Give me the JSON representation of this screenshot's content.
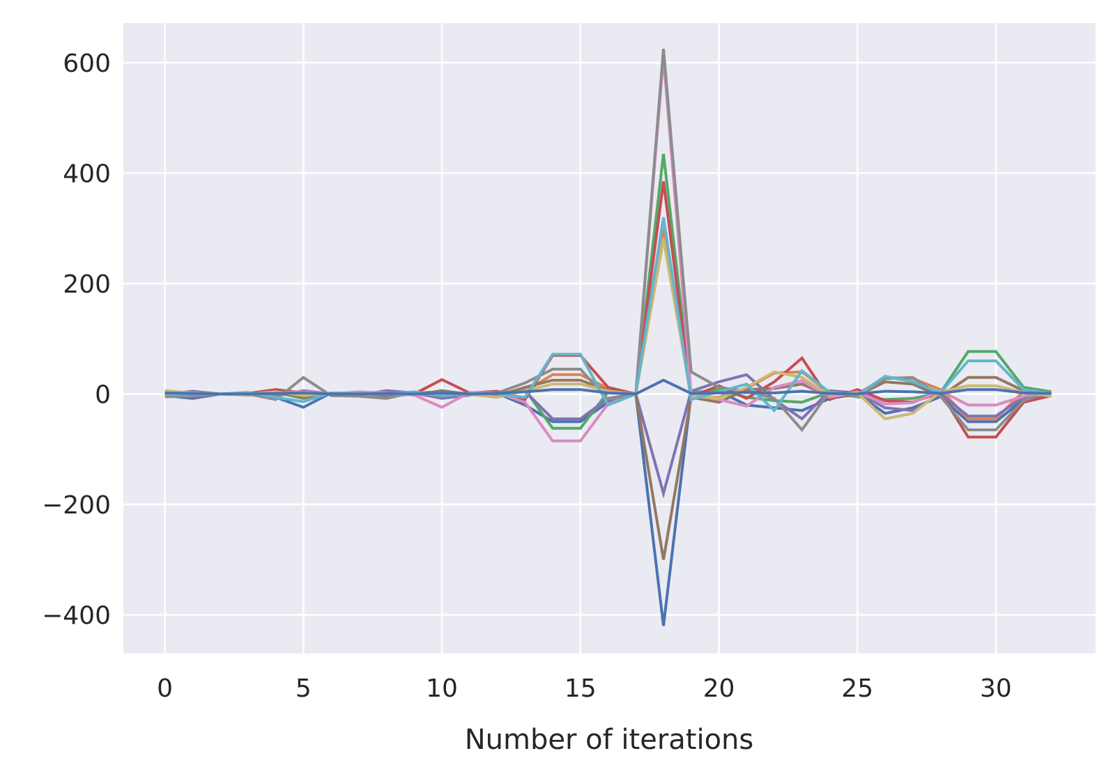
{
  "chart_data": {
    "type": "line",
    "title": "",
    "xlabel": "Number of iterations",
    "ylabel": "",
    "xlim": [
      -1.5,
      33.6
    ],
    "ylim": [
      -470,
      672
    ],
    "x_ticks": [
      0,
      5,
      10,
      15,
      20,
      25,
      30
    ],
    "y_ticks": [
      -400,
      -200,
      0,
      200,
      400,
      600
    ],
    "grid": true,
    "background": "#EAEAF2",
    "grid_color": "#FFFFFF",
    "palette": [
      "#4C72B0",
      "#DD8452",
      "#55A868",
      "#C44E52",
      "#8172B3",
      "#937860",
      "#DA8BC3",
      "#8C8C8C",
      "#CCB974",
      "#64B5CD"
    ],
    "x": [
      0,
      1,
      2,
      3,
      4,
      5,
      6,
      7,
      8,
      9,
      10,
      11,
      12,
      13,
      14,
      15,
      16,
      17,
      18,
      19,
      20,
      21,
      22,
      23,
      24,
      25,
      26,
      27,
      28,
      29,
      30,
      31,
      32
    ],
    "series": [
      {
        "values": [
          -3,
          -8,
          0,
          1,
          -6,
          -24,
          2,
          -1,
          3,
          -2,
          6,
          -1,
          1,
          -20,
          -50,
          -50,
          -15,
          0,
          -420,
          0,
          5,
          -20,
          -25,
          -30,
          -8,
          0,
          -35,
          -25,
          -5,
          -50,
          -50,
          -10,
          -3
        ]
      },
      {
        "values": [
          5,
          0,
          0,
          -2,
          2,
          3,
          0,
          2,
          -3,
          0,
          -6,
          2,
          0,
          5,
          35,
          35,
          10,
          0,
          300,
          -8,
          -6,
          10,
          38,
          40,
          2,
          0,
          30,
          28,
          8,
          -45,
          -45,
          5,
          -2
        ]
      },
      {
        "values": [
          2,
          -1,
          0,
          0,
          3,
          -8,
          1,
          0,
          0,
          2,
          4,
          0,
          -1,
          8,
          -62,
          -62,
          4,
          0,
          435,
          2,
          8,
          -6,
          -12,
          -15,
          3,
          -5,
          -10,
          -8,
          2,
          77,
          77,
          12,
          4
        ]
      },
      {
        "values": [
          -2,
          2,
          0,
          1,
          8,
          2,
          -1,
          1,
          -2,
          0,
          26,
          2,
          5,
          -10,
          70,
          70,
          12,
          0,
          385,
          -5,
          15,
          -8,
          22,
          65,
          -10,
          8,
          -12,
          -15,
          3,
          -78,
          -78,
          -15,
          -3
        ]
      },
      {
        "values": [
          0,
          5,
          0,
          -1,
          -4,
          6,
          0,
          -2,
          6,
          2,
          -8,
          -2,
          2,
          5,
          -45,
          -45,
          -8,
          0,
          -180,
          5,
          22,
          35,
          -10,
          -45,
          6,
          2,
          -25,
          -30,
          0,
          -40,
          -40,
          -6,
          2
        ]
      },
      {
        "values": [
          1,
          -3,
          0,
          2,
          4,
          -6,
          1,
          3,
          -4,
          0,
          5,
          0,
          -3,
          12,
          25,
          25,
          6,
          0,
          -300,
          -6,
          -15,
          8,
          10,
          18,
          -4,
          -3,
          22,
          18,
          -4,
          30,
          30,
          6,
          -2
        ]
      },
      {
        "values": [
          0,
          1,
          0,
          0,
          2,
          4,
          0,
          4,
          2,
          -2,
          -24,
          3,
          2,
          -15,
          -85,
          -85,
          -18,
          0,
          610,
          2,
          -10,
          -22,
          12,
          24,
          -6,
          4,
          -18,
          -16,
          6,
          -20,
          -20,
          -4,
          3
        ]
      },
      {
        "values": [
          -5,
          -4,
          0,
          0,
          -10,
          30,
          -3,
          -4,
          -8,
          3,
          -4,
          0,
          2,
          20,
          45,
          45,
          -10,
          0,
          625,
          40,
          12,
          5,
          -8,
          -65,
          5,
          -3,
          28,
          30,
          -4,
          -65,
          -65,
          -12,
          5
        ]
      },
      {
        "values": [
          6,
          2,
          0,
          -1,
          4,
          -3,
          2,
          0,
          1,
          -1,
          2,
          -1,
          -6,
          6,
          18,
          18,
          5,
          0,
          280,
          -4,
          -8,
          12,
          40,
          30,
          -2,
          2,
          -45,
          -35,
          4,
          15,
          15,
          3,
          -4
        ]
      },
      {
        "values": [
          -1,
          0,
          0,
          3,
          -6,
          -14,
          2,
          1,
          0,
          4,
          -3,
          1,
          0,
          -6,
          72,
          72,
          -20,
          0,
          320,
          -10,
          4,
          18,
          -30,
          42,
          3,
          -2,
          32,
          22,
          2,
          60,
          60,
          8,
          1
        ]
      },
      {
        "values": [
          2,
          1,
          0,
          0,
          1,
          2,
          0,
          0,
          1,
          0,
          2,
          0,
          1,
          4,
          8,
          8,
          2,
          0,
          25,
          1,
          2,
          3,
          2,
          5,
          1,
          0,
          5,
          4,
          1,
          8,
          8,
          2,
          1
        ]
      }
    ]
  }
}
